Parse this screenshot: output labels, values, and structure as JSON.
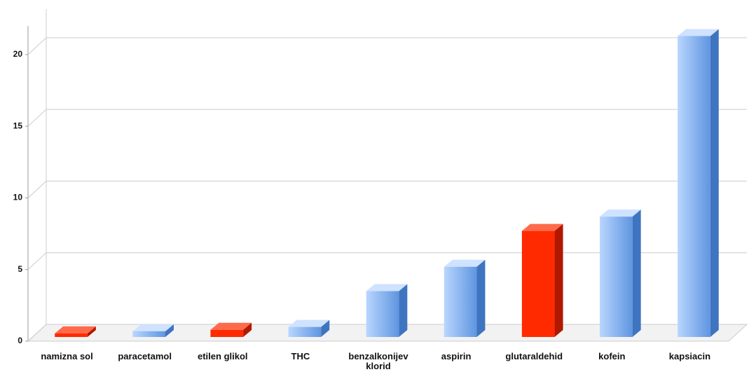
{
  "chart_data": {
    "type": "bar3d",
    "categories": [
      "namizna sol",
      "paracetamol",
      "etilen glikol",
      "THC",
      "benzalkonijev klorid",
      "aspirin",
      "glutaraldehid",
      "kofein",
      "kapsiacin"
    ],
    "values": [
      0.25,
      0.4,
      0.5,
      0.7,
      3.2,
      4.9,
      7.4,
      8.4,
      21
    ],
    "colors": [
      "#ff2a00",
      "#7fb0ee",
      "#ff2a00",
      "#7fb0ee",
      "#7fb0ee",
      "#7fb0ee",
      "#ff2a00",
      "#7fb0ee",
      "#7fb0ee"
    ],
    "ylim": [
      0,
      22
    ],
    "yticks": [
      0,
      5,
      10,
      15,
      20
    ],
    "grid": true
  }
}
